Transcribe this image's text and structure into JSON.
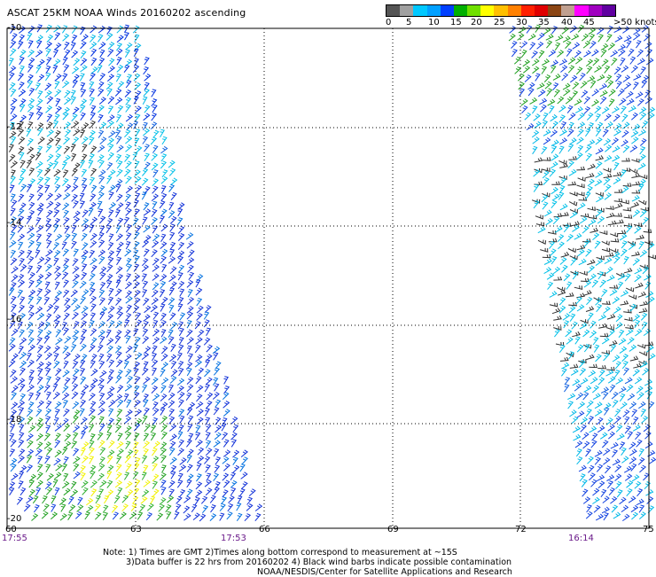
{
  "title": "ASCAT 25KM NOAA Winds 20160202 ascending",
  "colorbar": {
    "colors": [
      "#555555",
      "#a0a0a0",
      "#00c8ff",
      "#00a0ff",
      "#0040ff",
      "#00b000",
      "#70e000",
      "#ffff00",
      "#ffc000",
      "#ff8000",
      "#ff2000",
      "#e00000",
      "#8b4513",
      "#c0a090",
      "#ff00ff",
      "#a000c0",
      "#6000a0"
    ],
    "labels": [
      "0",
      "5",
      "10",
      "15",
      "20",
      "25",
      "30",
      "35",
      "40",
      "45",
      ">50 knots"
    ]
  },
  "map": {
    "lon_range": [
      60,
      75
    ],
    "lat_range": [
      -20,
      -10
    ],
    "x_ticks": [
      "60",
      "63",
      "66",
      "69",
      "72",
      "75"
    ],
    "y_ticks": [
      "-10",
      "-12",
      "-14",
      "-16",
      "-18",
      "-20"
    ],
    "grid": true
  },
  "times": [
    "17:55",
    "17:53",
    "16:14"
  ],
  "notes": [
    "Note: 1) Times are GMT 2)Times along bottom correspond to measurement at ~15S",
    "3)Data buffer is 22 hrs from 20160202 4) Black wind barbs indicate possible contamination",
    "NOAA/NESDIS/Center for Satellite Applications and Research"
  ]
}
